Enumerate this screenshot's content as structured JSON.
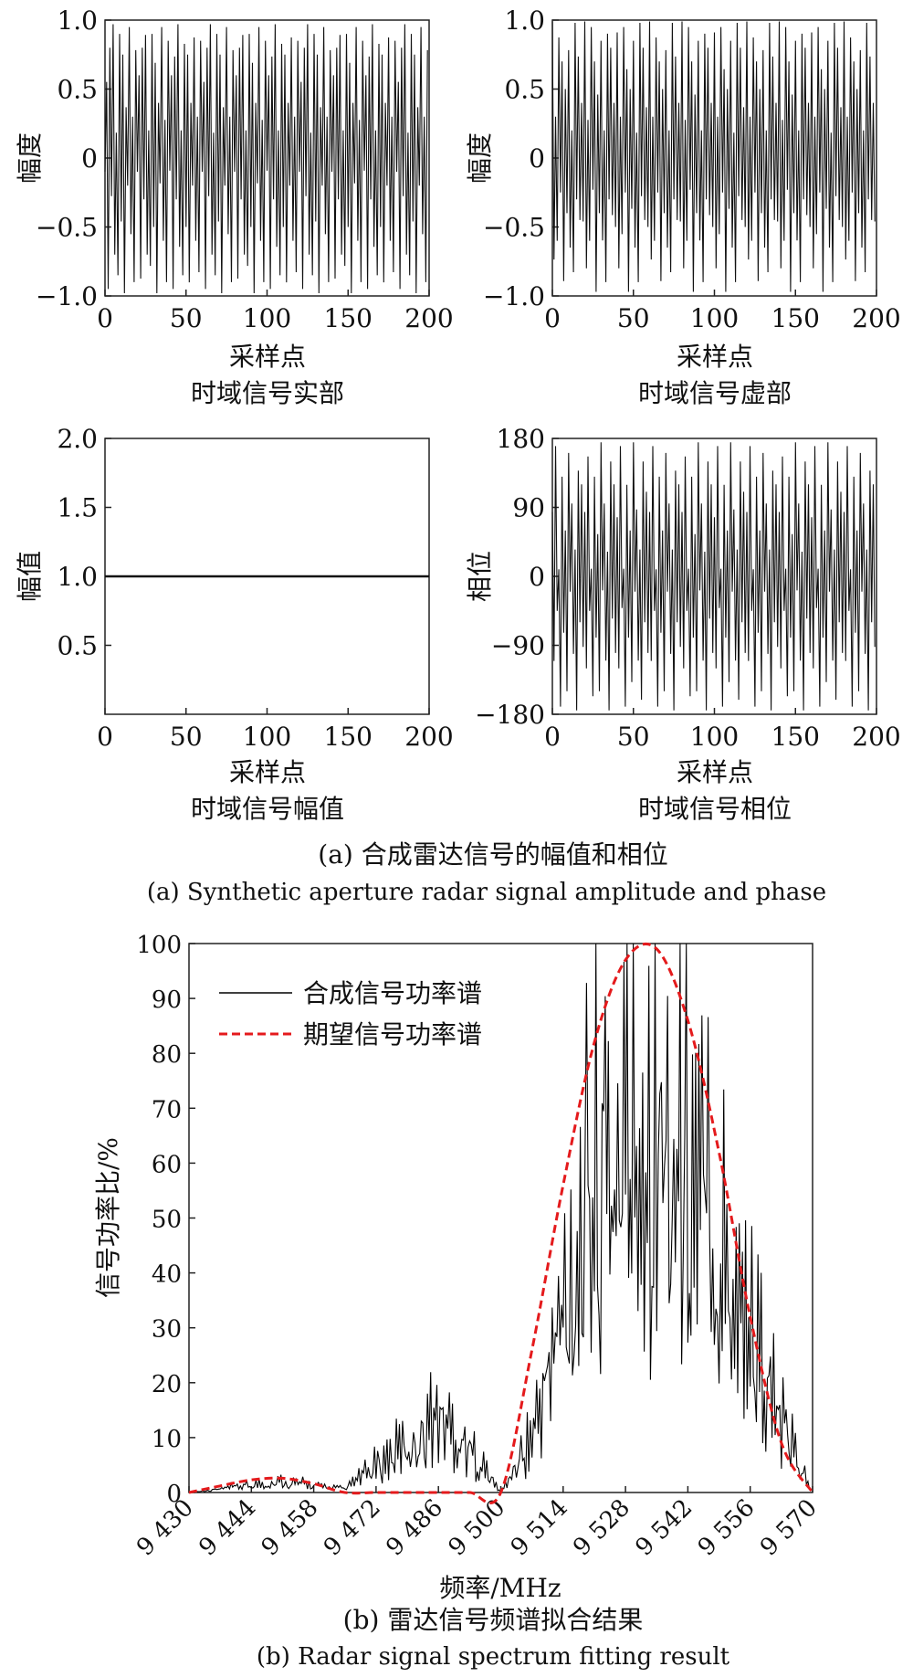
{
  "figure": {
    "caption_a_cn": "(a) 合成雷达信号的幅值和相位",
    "caption_a_en": "(a) Synthetic aperture radar signal amplitude and phase",
    "caption_b_cn": "(b) 雷达信号频谱拟合结果",
    "caption_b_en": "(b) Radar signal spectrum fitting result"
  },
  "chart_data": [
    {
      "id": "real",
      "type": "line",
      "title": "时域信号实部",
      "xlabel": "采样点",
      "ylabel": "幅度",
      "xlim": [
        0,
        200
      ],
      "ylim": [
        -1,
        1
      ],
      "xticks": [
        0,
        50,
        100,
        150,
        200
      ],
      "yticks": [
        -1,
        -0.5,
        0,
        0.5,
        1
      ],
      "xtick_labels": [
        "0",
        "50",
        "100",
        "150",
        "200"
      ],
      "ytick_labels": [
        "−1.0",
        "−0.5",
        "0",
        "0.5",
        "1.0"
      ],
      "grid": false,
      "series": [
        {
          "pattern": "random_cos",
          "n_points": 200,
          "values": [
            -0.1,
            0.6,
            -0.95,
            0.8,
            -0.3,
            0.97,
            -0.7,
            0.2,
            -0.85,
            0.9,
            -0.5,
            0.75,
            -0.98,
            0.4,
            -0.2,
            0.95,
            -0.6,
            0.3,
            -0.9,
            0.85
          ]
        }
      ]
    },
    {
      "id": "imag",
      "type": "line",
      "title": "时域信号虚部",
      "xlabel": "采样点",
      "ylabel": "幅度",
      "xlim": [
        0,
        200
      ],
      "ylim": [
        -1,
        1
      ],
      "xticks": [
        0,
        50,
        100,
        150,
        200
      ],
      "yticks": [
        -1,
        -0.5,
        0,
        0.5,
        1
      ],
      "xtick_labels": [
        "0",
        "50",
        "100",
        "150",
        "200"
      ],
      "ytick_labels": [
        "−1.0",
        "−0.5",
        "0",
        "0.5",
        "1.0"
      ],
      "grid": false,
      "series": [
        {
          "pattern": "random_sin",
          "n_points": 200,
          "values": [
            0.99,
            -0.8,
            0.3,
            -0.6,
            0.95,
            -0.25,
            0.7,
            -0.97,
            0.5,
            -0.4,
            0.85,
            -0.65,
            0.2,
            -0.9,
            0.98,
            -0.3,
            0.8,
            -0.45,
            0.4,
            -0.5
          ]
        }
      ]
    },
    {
      "id": "amp",
      "type": "line",
      "title": "时域信号幅值",
      "xlabel": "采样点",
      "ylabel": "幅值",
      "xlim": [
        0,
        200
      ],
      "ylim": [
        0,
        2
      ],
      "xticks": [
        0,
        50,
        100,
        150,
        200
      ],
      "yticks": [
        0.5,
        1,
        1.5,
        2
      ],
      "xtick_labels": [
        "0",
        "50",
        "100",
        "150",
        "200"
      ],
      "ytick_labels": [
        "0.5",
        "1.0",
        "1.5",
        "2.0"
      ],
      "grid": false,
      "series": [
        {
          "x": [
            0,
            200
          ],
          "values": [
            1,
            1
          ]
        }
      ]
    },
    {
      "id": "phase",
      "type": "line",
      "title": "时域信号相位",
      "xlabel": "采样点",
      "ylabel": "相位",
      "xlim": [
        0,
        200
      ],
      "ylim": [
        -180,
        180
      ],
      "xticks": [
        0,
        50,
        100,
        150,
        200
      ],
      "yticks": [
        -180,
        -90,
        0,
        90,
        180
      ],
      "xtick_labels": [
        "0",
        "50",
        "100",
        "150",
        "200"
      ],
      "ytick_labels": [
        "−180",
        "−90",
        "0",
        "90",
        "180"
      ],
      "grid": false,
      "series": [
        {
          "pattern": "random_phase",
          "n_points": 200,
          "values": [
            84,
            -120,
            170,
            -45,
            10,
            -170,
            130,
            -80,
            60,
            -150,
            175,
            -20,
            95,
            -110,
            35,
            -175,
            150,
            -60,
            120,
            -100
          ]
        }
      ]
    },
    {
      "id": "spectrum",
      "type": "line",
      "xlabel": "频率/MHz",
      "ylabel": "信号功率比/%",
      "xlim": [
        9430,
        9570
      ],
      "ylim": [
        0,
        100
      ],
      "xticks": [
        9430,
        9444,
        9458,
        9472,
        9486,
        9500,
        9514,
        9528,
        9542,
        9556,
        9570
      ],
      "xtick_labels": [
        "9 430",
        "9 444",
        "9 458",
        "9 472",
        "9 486",
        "9 500",
        "9 514",
        "9 528",
        "9 542",
        "9 556",
        "9 570"
      ],
      "yticks": [
        0,
        10,
        20,
        30,
        40,
        50,
        60,
        70,
        80,
        90,
        100
      ],
      "ytick_labels": [
        "0",
        "10",
        "20",
        "30",
        "40",
        "50",
        "60",
        "70",
        "80",
        "90",
        "100"
      ],
      "legend": "top-left",
      "grid": false,
      "series": [
        {
          "name": "合成信号功率谱",
          "color": "#000000",
          "style": "solid",
          "x": [
            9430,
            9444,
            9451,
            9458,
            9465,
            9472,
            9479,
            9486,
            9493,
            9500,
            9507,
            9514,
            9521,
            9528,
            9535,
            9542,
            9549,
            9556,
            9563,
            9570
          ],
          "values": [
            0,
            2,
            3,
            2,
            1,
            7,
            13,
            21,
            12,
            0,
            15,
            50,
            85,
            95,
            100,
            88,
            70,
            45,
            18,
            0
          ]
        },
        {
          "name": "期望信号功率谱",
          "color": "#e41a1c",
          "style": "dashed",
          "x": [
            9430,
            9437,
            9444,
            9451,
            9458,
            9465,
            9472,
            9479,
            9486,
            9493,
            9500,
            9507,
            9514,
            9521,
            9528,
            9535,
            9542,
            9549,
            9556,
            9563,
            9570
          ],
          "values": [
            0,
            1.2,
            2.3,
            2.6,
            1.6,
            0,
            0,
            0,
            0,
            0,
            0,
            26,
            56,
            82,
            97,
            99,
            86,
            62,
            32,
            9,
            0
          ]
        }
      ]
    }
  ]
}
